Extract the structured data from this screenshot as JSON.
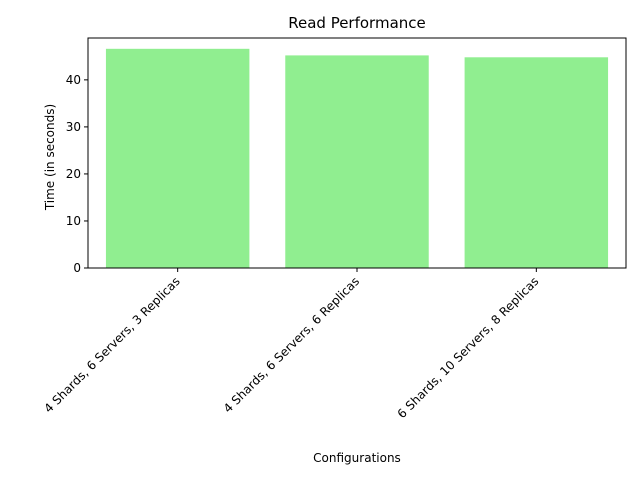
{
  "chart_data": {
    "type": "bar",
    "title": "Read Performance",
    "xlabel": "Configurations",
    "ylabel": "Time (in seconds)",
    "categories": [
      "4 Shards, 6 Servers, 3 Replicas",
      "4 Shards, 6 Servers, 6 Replicas",
      "6 Shards, 10 Servers, 8 Replicas"
    ],
    "values": [
      46.6,
      45.2,
      44.8
    ],
    "ylim": [
      0,
      48.9
    ],
    "yticks": [
      0,
      10,
      20,
      30,
      40
    ],
    "bar_color": "#90ee90",
    "grid": false,
    "legend": "none"
  }
}
